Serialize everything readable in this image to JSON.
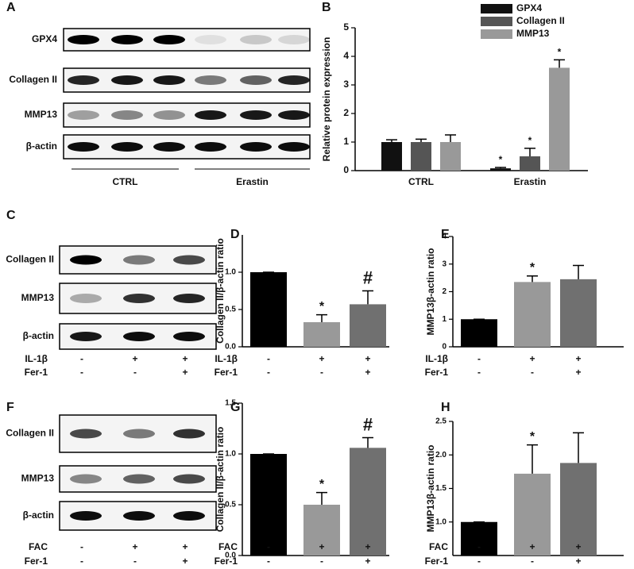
{
  "panel_labels": [
    "A",
    "B",
    "C",
    "D",
    "E",
    "F",
    "G",
    "H"
  ],
  "blots": [
    {
      "rows": [
        "GPX4",
        "Collagen II",
        "MMP13",
        "β-actin"
      ],
      "groups": [
        "CTRL",
        "Erastin"
      ]
    },
    {
      "rows": [
        "Collagen II",
        "MMP13",
        "β-actin"
      ],
      "conditions": [
        {
          "name": "IL-1β",
          "signs": [
            "-",
            "+",
            "+"
          ]
        },
        {
          "name": "Fer-1",
          "signs": [
            "-",
            "-",
            "+"
          ]
        }
      ]
    },
    {
      "rows": [
        "Collagen II",
        "MMP13",
        "β-actin"
      ],
      "conditions": [
        {
          "name": "FAC",
          "signs": [
            "-",
            "+",
            "+"
          ]
        },
        {
          "name": "Fer-1",
          "signs": [
            "-",
            "-",
            "+"
          ]
        }
      ]
    }
  ],
  "chart_data": [
    {
      "type": "grouped-bar",
      "ylabel": "Relative protein expression",
      "categories": [
        "CTRL",
        "Erastin"
      ],
      "series": [
        {
          "name": "GPX4",
          "color": "#111111",
          "values": [
            1.0,
            0.08
          ],
          "errors": [
            0.08,
            0.03
          ],
          "annotations": [
            null,
            "*"
          ]
        },
        {
          "name": "Collagen II",
          "color": "#555555",
          "values": [
            1.0,
            0.5
          ],
          "errors": [
            0.1,
            0.28
          ],
          "annotations": [
            null,
            "*"
          ]
        },
        {
          "name": "MMP13",
          "color": "#999999",
          "values": [
            1.0,
            3.6
          ],
          "errors": [
            0.25,
            0.28
          ],
          "annotations": [
            null,
            "*"
          ]
        }
      ],
      "ylim": [
        0,
        5
      ],
      "yticks": [
        0,
        1,
        2,
        3,
        4,
        5
      ],
      "legend": "top-right"
    },
    {
      "type": "bar",
      "ylabel": "Collagen II/β-actin ratio",
      "values": [
        1.0,
        0.33,
        0.57
      ],
      "errors": [
        0,
        0.1,
        0.18
      ],
      "annotations": [
        null,
        "*",
        "#"
      ],
      "colors": [
        "#000000",
        "#999999",
        "#707070"
      ],
      "ylim": [
        0,
        1.5
      ],
      "yticks": [
        {
          "value": 0,
          "label": "0.0"
        },
        {
          "value": 0.5,
          "label": "0.5"
        },
        {
          "value": 1,
          "label": "1.0"
        }
      ],
      "conditions": [
        {
          "name": "IL-1β",
          "signs": [
            "-",
            "+",
            "+"
          ]
        },
        {
          "name": "Fer-1",
          "signs": [
            "-",
            "-",
            "+"
          ]
        }
      ]
    },
    {
      "type": "bar",
      "ylabel": "MMP13β-actin ratio",
      "values": [
        1.0,
        2.35,
        2.45
      ],
      "errors": [
        0,
        0.22,
        0.5
      ],
      "annotations": [
        null,
        "*",
        null
      ],
      "colors": [
        "#000000",
        "#999999",
        "#707070"
      ],
      "ylim": [
        0,
        4
      ],
      "yticks": [
        0,
        1,
        2,
        3,
        4
      ],
      "conditions": [
        {
          "name": "IL-1β",
          "signs": [
            "-",
            "+",
            "+"
          ]
        },
        {
          "name": "Fer-1",
          "signs": [
            "-",
            "-",
            "+"
          ]
        }
      ]
    },
    {
      "type": "bar",
      "ylabel": "Collagen II/β-actin ratio",
      "values": [
        1.0,
        0.5,
        1.06
      ],
      "errors": [
        0,
        0.12,
        0.1
      ],
      "annotations": [
        null,
        "*",
        "#"
      ],
      "colors": [
        "#000000",
        "#999999",
        "#707070"
      ],
      "ylim": [
        0,
        1.5
      ],
      "yticks": [
        {
          "value": 0,
          "label": "0.0"
        },
        {
          "value": 0.5,
          "label": "0.5"
        },
        {
          "value": 1,
          "label": "1.0"
        },
        {
          "value": 1.5,
          "label": "1.5"
        }
      ],
      "conditions": [
        {
          "name": "FAC",
          "signs": [
            "-",
            "+",
            "+"
          ]
        },
        {
          "name": "Fer-1",
          "signs": [
            "-",
            "-",
            "+"
          ]
        }
      ]
    },
    {
      "type": "bar",
      "ylabel": "MMP13β-actin ratio",
      "values": [
        1.0,
        1.72,
        1.88
      ],
      "errors": [
        0,
        0.43,
        0.45
      ],
      "annotations": [
        null,
        "*",
        null
      ],
      "colors": [
        "#000000",
        "#999999",
        "#707070"
      ],
      "ylim": [
        0.5,
        2.5
      ],
      "yticks": [
        {
          "value": 1,
          "label": "1.0"
        },
        {
          "value": 1.5,
          "label": "1.5"
        },
        {
          "value": 2,
          "label": "2.0"
        },
        {
          "value": 2.5,
          "label": "2.5"
        }
      ],
      "conditions": [
        {
          "name": "FAC",
          "signs": [
            "-",
            "+",
            "+"
          ]
        },
        {
          "name": "Fer-1",
          "signs": [
            "-",
            "-",
            "+"
          ]
        }
      ]
    }
  ]
}
